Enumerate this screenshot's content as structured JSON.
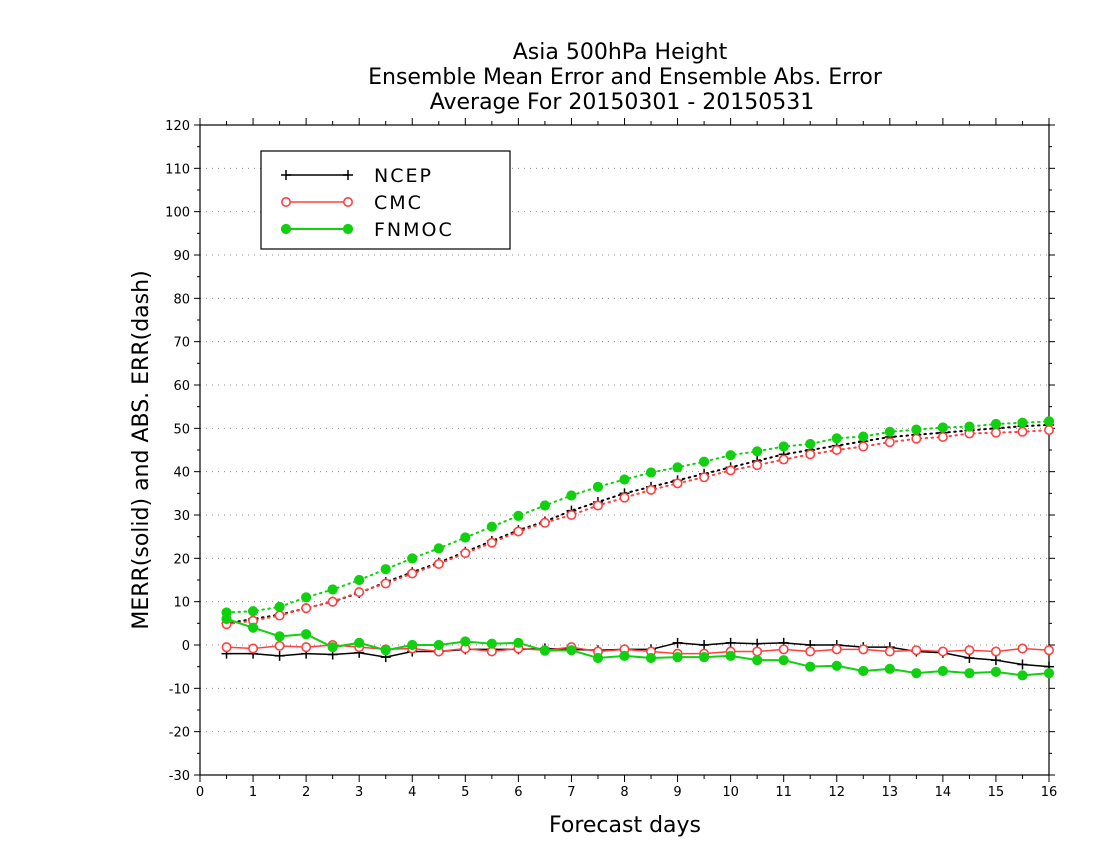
{
  "chart_data": {
    "type": "line",
    "title_lines": [
      "Asia 500hPa Height",
      "Ensemble Mean Error and Ensemble Abs. Error",
      "Average For 20150301 - 20150531"
    ],
    "xlabel": "Forecast days",
    "ylabel": "MERR(solid) and ABS. ERR(dash)",
    "xlim": [
      0,
      16
    ],
    "ylim": [
      -30,
      120
    ],
    "xticks": [
      0,
      1,
      2,
      3,
      4,
      5,
      6,
      7,
      8,
      9,
      10,
      11,
      12,
      13,
      14,
      15,
      16
    ],
    "yticks": [
      -30,
      -20,
      -10,
      0,
      10,
      20,
      30,
      40,
      50,
      60,
      70,
      80,
      90,
      100,
      110,
      120
    ],
    "grid": true,
    "legend_position": "top-left",
    "x": [
      0.5,
      1,
      1.5,
      2,
      2.5,
      3,
      3.5,
      4,
      4.5,
      5,
      5.5,
      6,
      6.5,
      7,
      7.5,
      8,
      8.5,
      9,
      9.5,
      10,
      10.5,
      11,
      11.5,
      12,
      12.5,
      13,
      13.5,
      14,
      14.5,
      15,
      15.5,
      16
    ],
    "series": [
      {
        "name": "NCEP",
        "color": "#000000",
        "marker": "plus",
        "merr": [
          -2.0,
          -2.0,
          -2.5,
          -2.0,
          -2.2,
          -1.8,
          -2.8,
          -1.5,
          -1.5,
          -1.0,
          -1.0,
          -1.0,
          -0.8,
          -1.0,
          -1.2,
          -1.0,
          -1.0,
          0.5,
          0.0,
          0.5,
          0.3,
          0.5,
          0.0,
          0.0,
          -0.5,
          -0.5,
          -1.5,
          -1.8,
          -3.0,
          -3.5,
          -4.5,
          -5.0
        ],
        "abs_err": [
          5.0,
          6.0,
          7.0,
          8.5,
          10.0,
          12.0,
          14.5,
          16.8,
          19.0,
          21.5,
          24.0,
          26.5,
          28.5,
          31.0,
          33.0,
          35.0,
          36.5,
          38.0,
          39.5,
          41.0,
          42.5,
          44.0,
          45.0,
          46.0,
          47.0,
          48.0,
          48.5,
          49.0,
          49.5,
          50.0,
          50.5,
          50.8
        ]
      },
      {
        "name": "CMC",
        "color": "#ff4040",
        "marker": "open-circle",
        "merr": [
          -0.5,
          -0.8,
          -0.2,
          -0.5,
          0.0,
          -0.5,
          -1.0,
          -0.8,
          -1.5,
          -0.8,
          -1.5,
          -0.8,
          -1.2,
          -0.5,
          -1.5,
          -1.0,
          -1.5,
          -2.0,
          -2.0,
          -1.5,
          -1.5,
          -1.0,
          -1.5,
          -1.0,
          -1.0,
          -1.5,
          -1.2,
          -1.5,
          -1.2,
          -1.5,
          -0.8,
          -1.2
        ],
        "abs_err": [
          4.8,
          5.6,
          6.8,
          8.5,
          10.0,
          12.2,
          14.2,
          16.5,
          18.7,
          21.2,
          23.6,
          26.2,
          28.2,
          30.0,
          32.2,
          34.0,
          35.8,
          37.3,
          38.7,
          40.3,
          41.5,
          42.8,
          44.0,
          45.0,
          45.8,
          46.8,
          47.6,
          48.0,
          48.8,
          49.0,
          49.2,
          49.6
        ]
      },
      {
        "name": "FNMOC",
        "color": "#10d010",
        "marker": "filled-circle",
        "merr": [
          6.0,
          4.0,
          2.0,
          2.5,
          -0.5,
          0.5,
          -1.2,
          0.0,
          0.0,
          0.8,
          0.3,
          0.5,
          -1.3,
          -1.2,
          -3.0,
          -2.5,
          -3.0,
          -2.8,
          -2.8,
          -2.5,
          -3.5,
          -3.5,
          -5.0,
          -4.8,
          -6.0,
          -5.5,
          -6.5,
          -6.0,
          -6.5,
          -6.2,
          -7.0,
          -6.5
        ],
        "abs_err": [
          7.5,
          7.8,
          8.8,
          11.0,
          12.8,
          15.0,
          17.5,
          20.0,
          22.3,
          24.8,
          27.3,
          29.8,
          32.2,
          34.5,
          36.5,
          38.2,
          39.8,
          41.0,
          42.3,
          43.8,
          44.7,
          45.8,
          46.4,
          47.7,
          48.1,
          49.2,
          49.7,
          50.2,
          50.4,
          51.0,
          51.3,
          51.6
        ]
      }
    ]
  }
}
